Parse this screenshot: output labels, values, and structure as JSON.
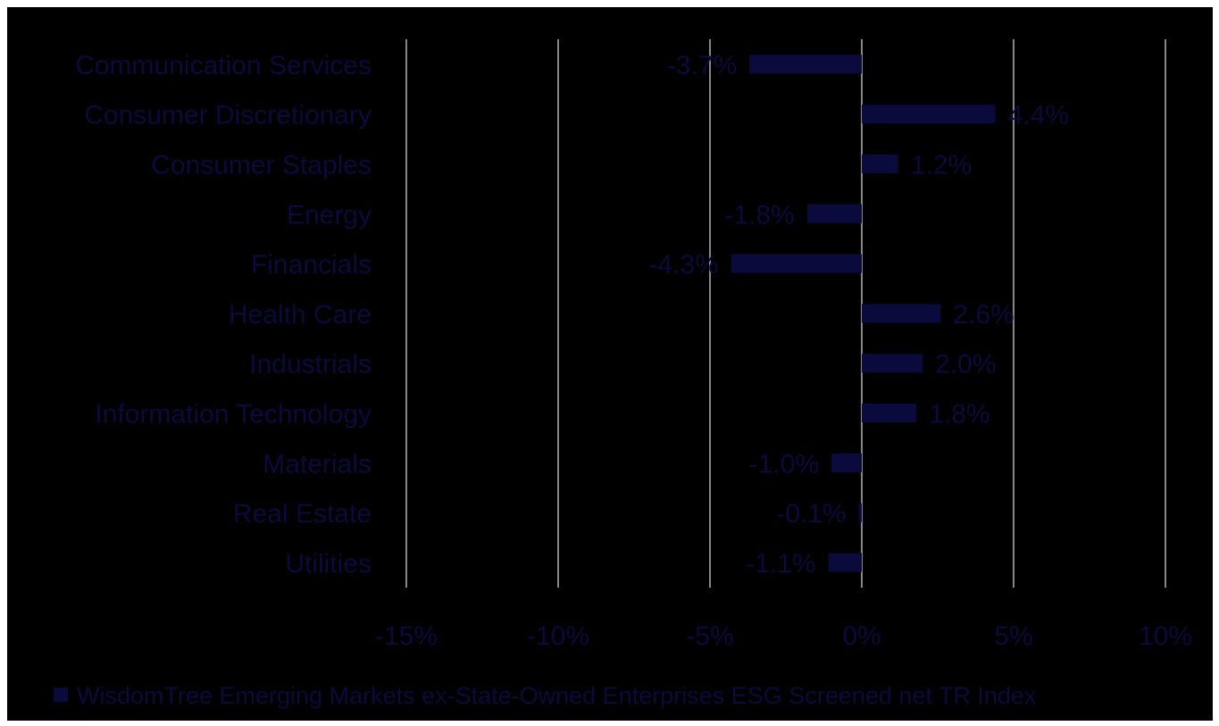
{
  "chart_data": {
    "type": "bar",
    "orientation": "horizontal",
    "categories": [
      "Communication Services",
      "Consumer Discretionary",
      "Consumer Staples",
      "Energy",
      "Financials",
      "Health Care",
      "Industrials",
      "Information Technology",
      "Materials",
      "Real Estate",
      "Utilities"
    ],
    "series": [
      {
        "name": "WisdomTree Emerging Markets ex-State-Owned Enterprises ESG Screened net TR Index",
        "values": [
          -3.7,
          4.4,
          1.2,
          -1.8,
          -4.3,
          2.6,
          2.0,
          1.8,
          -1.0,
          -0.1,
          -1.1
        ],
        "labels": [
          "-3.7%",
          "4.4%",
          "1.2%",
          "-1.8%",
          "-4.3%",
          "2.6%",
          "2.0%",
          "1.8%",
          "-1.0%",
          "-0.1%",
          "-1.1%"
        ],
        "color": "#0a0a3c"
      }
    ],
    "xlim": [
      -15,
      10
    ],
    "xticks": [
      -15,
      -10,
      -5,
      0,
      5,
      10
    ],
    "xtick_labels": [
      "-15%",
      "-10%",
      "-5%",
      "0%",
      "5%",
      "10%"
    ],
    "grid": true,
    "gridline_color": "#b4b4b4",
    "legend_placement": "bottom",
    "background_color": "#000000",
    "title": "",
    "xlabel": "",
    "ylabel": ""
  }
}
